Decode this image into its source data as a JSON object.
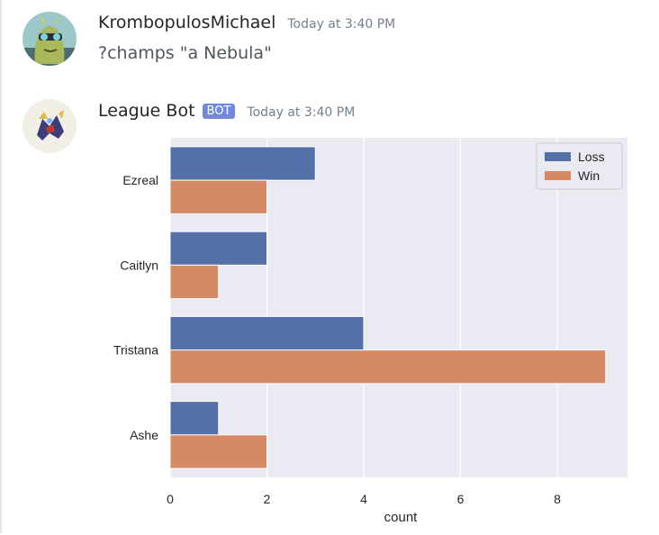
{
  "messages": [
    {
      "author": "KrombopulosMichael",
      "timestamp": "Today at 3:40 PM",
      "text": "?champs \"a Nebula\"",
      "avatar_icon": "alien-avatar-icon"
    },
    {
      "author": "League Bot",
      "bot_tag": "BOT",
      "timestamp": "Today at 3:40 PM",
      "avatar_icon": "bot-avatar-icon"
    }
  ],
  "chart_data": {
    "type": "bar",
    "orientation": "horizontal",
    "categories": [
      "Ezreal",
      "Caitlyn",
      "Tristana",
      "Ashe"
    ],
    "series": [
      {
        "name": "Loss",
        "values": [
          3,
          2,
          4,
          1
        ],
        "color": "#5471a7"
      },
      {
        "name": "Win",
        "values": [
          2,
          1,
          9,
          2
        ],
        "color": "#d58965"
      }
    ],
    "xlabel": "count",
    "ylabel": "",
    "xlim": [
      0,
      9.45
    ],
    "xticks": [
      0,
      2,
      4,
      6,
      8
    ],
    "grid": true,
    "background": "#eaeaf2",
    "legend": "top-right"
  }
}
